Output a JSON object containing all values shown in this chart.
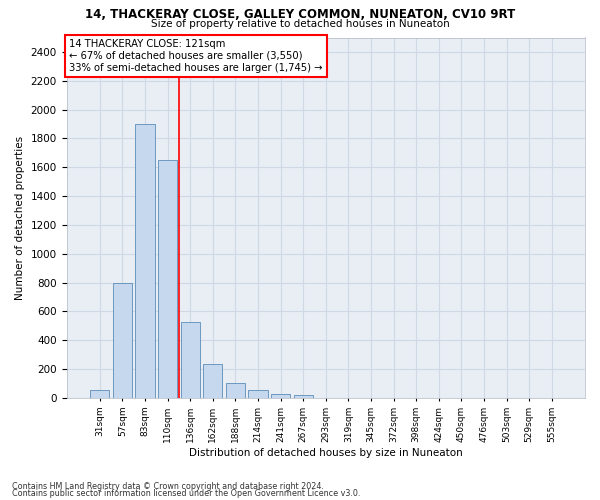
{
  "title": "14, THACKERAY CLOSE, GALLEY COMMON, NUNEATON, CV10 9RT",
  "subtitle": "Size of property relative to detached houses in Nuneaton",
  "xlabel": "Distribution of detached houses by size in Nuneaton",
  "ylabel": "Number of detached properties",
  "bar_color": "#c5d8ed",
  "bar_edge_color": "#5b8db8",
  "categories": [
    "31sqm",
    "57sqm",
    "83sqm",
    "110sqm",
    "136sqm",
    "162sqm",
    "188sqm",
    "214sqm",
    "241sqm",
    "267sqm",
    "293sqm",
    "319sqm",
    "345sqm",
    "372sqm",
    "398sqm",
    "424sqm",
    "450sqm",
    "476sqm",
    "503sqm",
    "529sqm",
    "555sqm"
  ],
  "values": [
    55,
    800,
    1900,
    1650,
    530,
    235,
    105,
    55,
    30,
    20,
    0,
    0,
    0,
    0,
    0,
    0,
    0,
    0,
    0,
    0,
    0
  ],
  "ylim": [
    0,
    2500
  ],
  "yticks": [
    0,
    200,
    400,
    600,
    800,
    1000,
    1200,
    1400,
    1600,
    1800,
    2000,
    2200,
    2400
  ],
  "property_line_bin": 3,
  "property_label": "14 THACKERAY CLOSE: 121sqm",
  "annotation_line1": "← 67% of detached houses are smaller (3,550)",
  "annotation_line2": "33% of semi-detached houses are larger (1,745) →",
  "box_color": "red",
  "line_color": "red",
  "footer1": "Contains HM Land Registry data © Crown copyright and database right 2024.",
  "footer2": "Contains public sector information licensed under the Open Government Licence v3.0.",
  "grid_color": "#d0d8e4",
  "plot_bg_color": "#e8eef4"
}
